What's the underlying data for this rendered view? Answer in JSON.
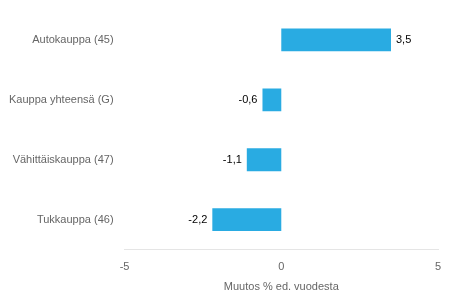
{
  "chart_data": {
    "type": "bar",
    "orientation": "horizontal",
    "categories": [
      "Tukkauppa (46)",
      "Vähittäiskauppa (47)",
      "Kauppa yhteensä (G)",
      "Autokauppa (45)"
    ],
    "values": [
      -2.2,
      -1.1,
      -0.6,
      3.5
    ],
    "value_labels": [
      "-2,2",
      "-1,1",
      "-0,6",
      "3,5"
    ],
    "data_labels": true,
    "color": "#29abe2",
    "xlabel": "Muutos % ed. vuodesta",
    "xlim": [
      -5,
      5
    ],
    "xticks": [
      -5,
      0,
      5
    ],
    "grid": false
  }
}
